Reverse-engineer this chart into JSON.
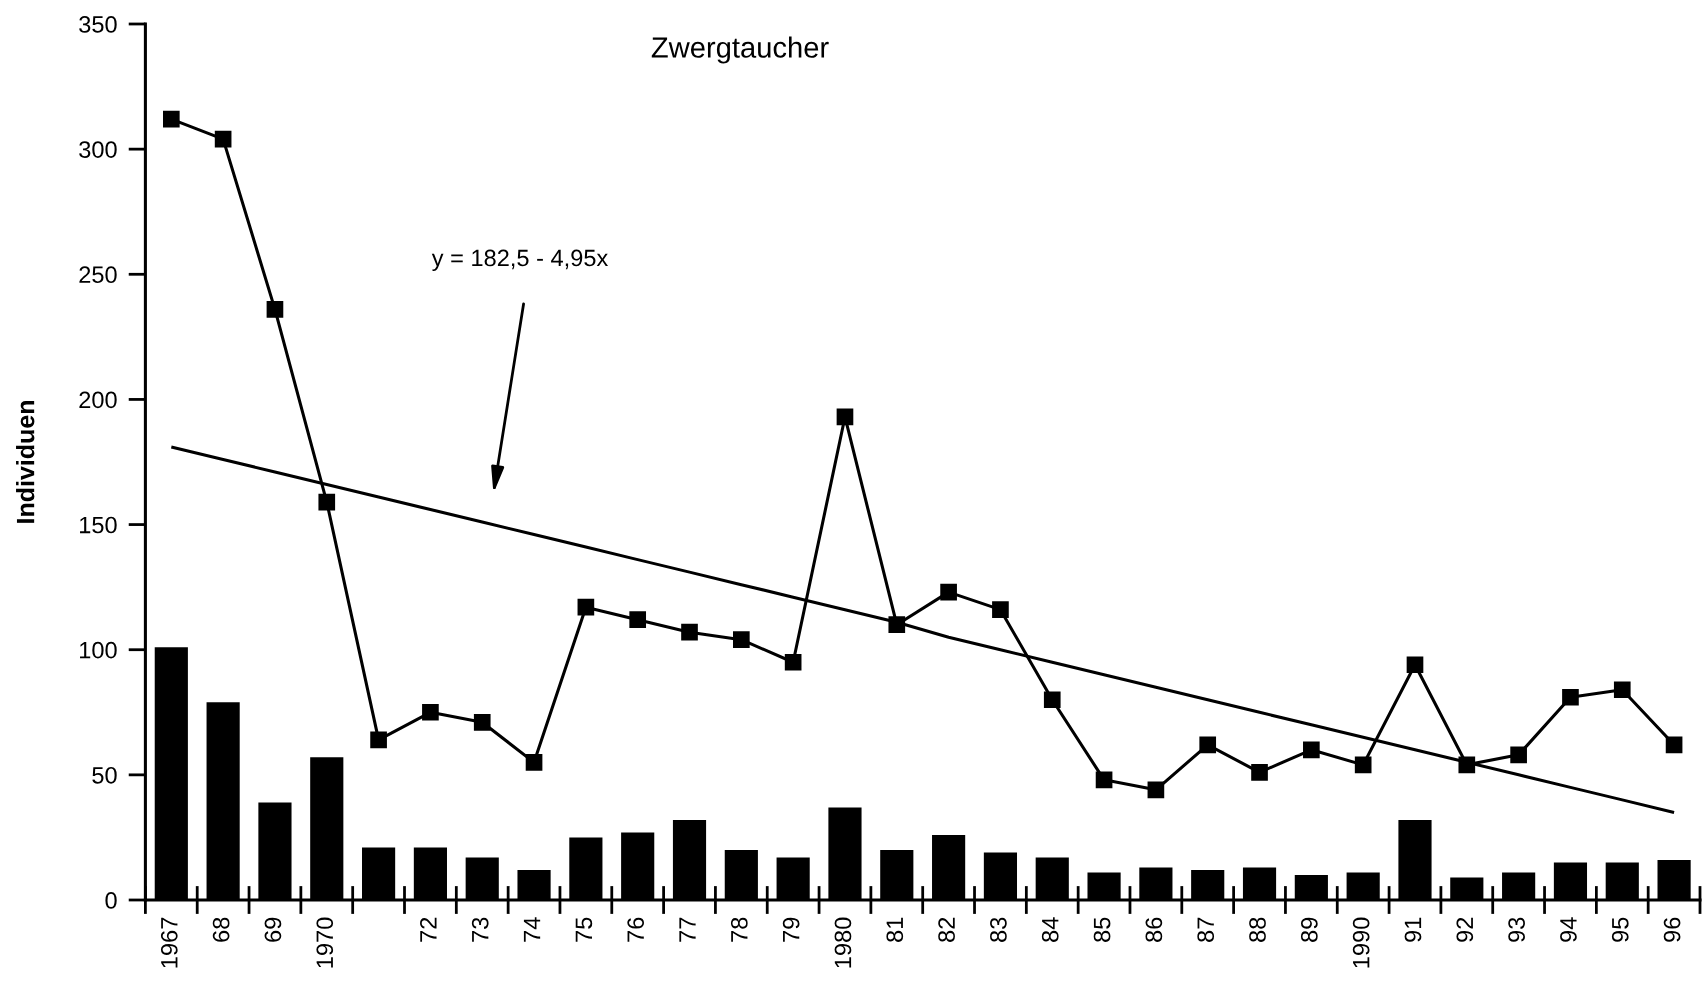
{
  "chart_data": {
    "type": "bar",
    "title": "Zwergtaucher",
    "ylabel": "Individuen",
    "categories": [
      "1967",
      "68",
      "69",
      "1970",
      null,
      "72",
      "73",
      "74",
      "75",
      "76",
      "77",
      "78",
      "79",
      "1980",
      "81",
      "82",
      "83",
      "84",
      "85",
      "86",
      "87",
      "88",
      "89",
      "1990",
      "91",
      "92",
      "93",
      "94",
      "95",
      "96"
    ],
    "ylim": [
      0,
      350
    ],
    "yticks": [
      0,
      50,
      100,
      150,
      200,
      250,
      300,
      350
    ],
    "grid": false,
    "color": "#000000",
    "series": [
      {
        "values": [
          101,
          79,
          39,
          57,
          21,
          21,
          17,
          12,
          25,
          27,
          32,
          20,
          17,
          37,
          20,
          26,
          19,
          17,
          11,
          13,
          12,
          13,
          10,
          11,
          32,
          9,
          11,
          15,
          15,
          16
        ]
      },
      {
        "type": "line",
        "marker": "square",
        "line_style": "solid",
        "values": [
          312,
          304,
          236,
          159,
          64,
          75,
          71,
          55,
          117,
          112,
          107,
          104,
          95,
          193,
          110,
          123,
          116,
          80,
          48,
          44,
          62,
          51,
          60,
          54,
          94,
          54,
          58,
          81,
          84,
          62
        ]
      },
      {
        "type": "line",
        "marker": "none",
        "line_style": "solid",
        "values": [
          181,
          176,
          171,
          166,
          161,
          156,
          151,
          146,
          141,
          136,
          131,
          126,
          121,
          116,
          111,
          105,
          100,
          95,
          90,
          85,
          80,
          75,
          70,
          65,
          60,
          55,
          50,
          45,
          40,
          35
        ]
      }
    ],
    "annotations": [
      "y = 182,5 - 4,95x"
    ]
  }
}
